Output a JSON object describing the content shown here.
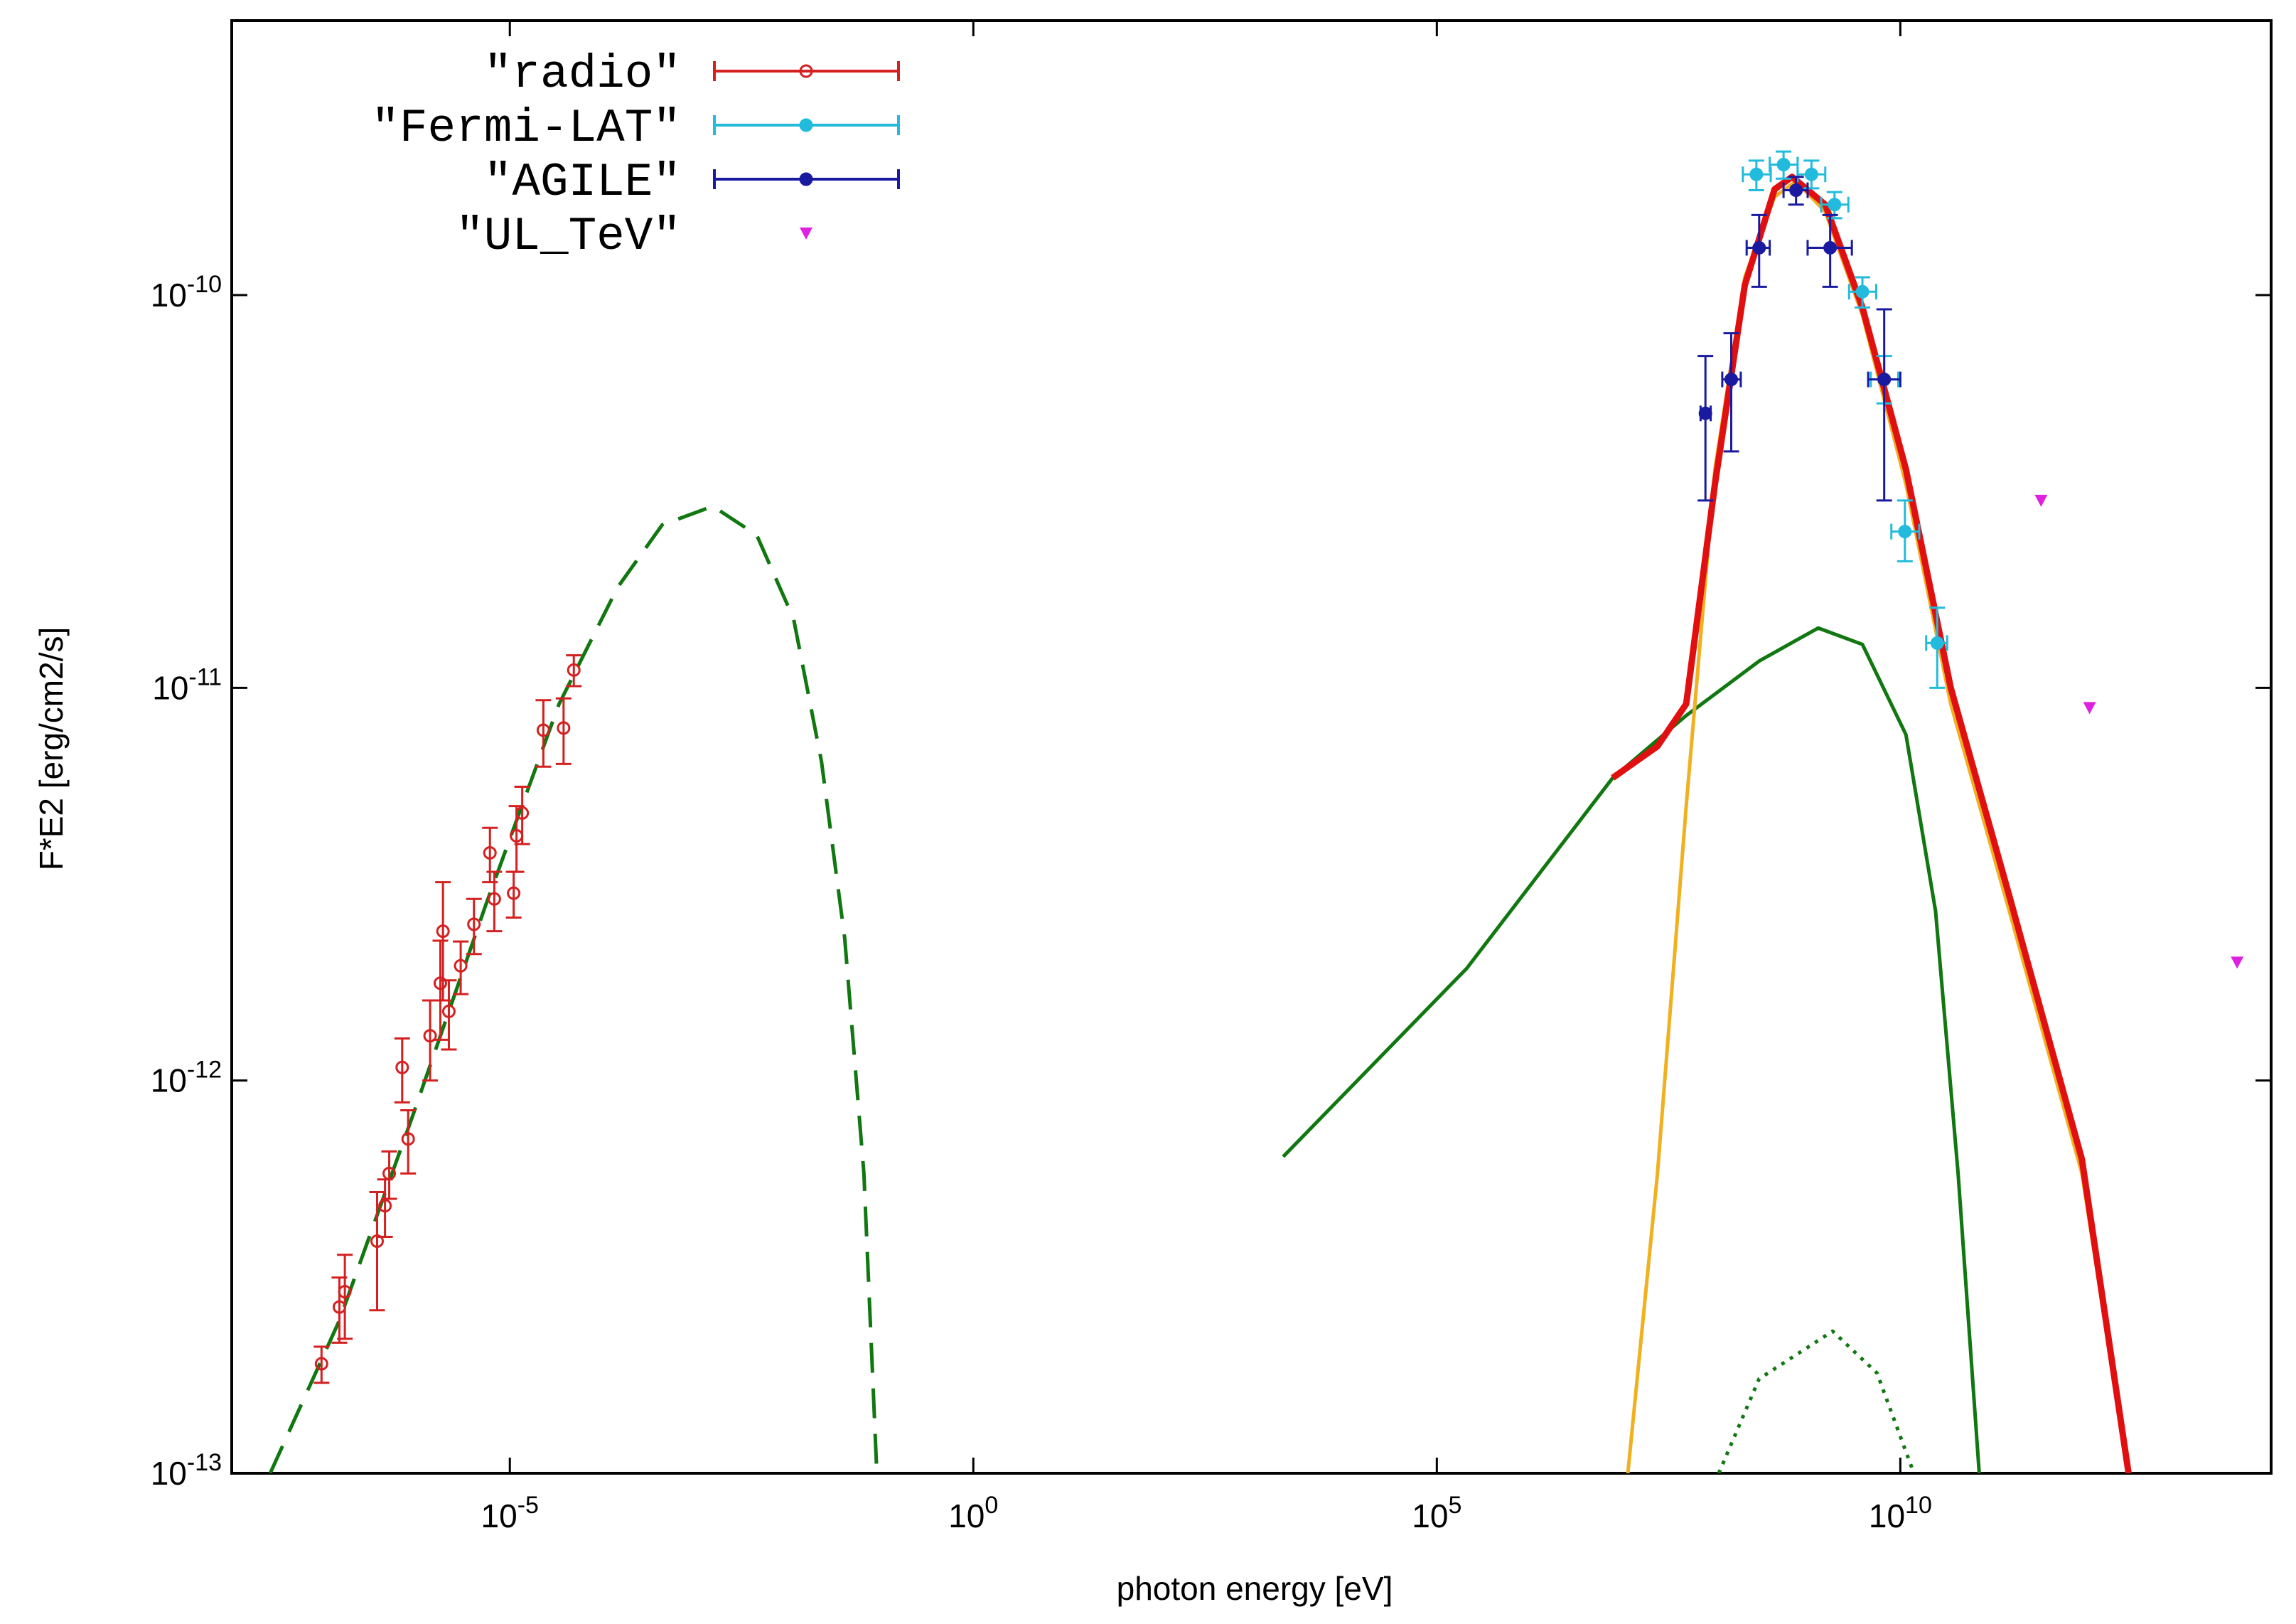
{
  "chart_data": {
    "type": "scatter",
    "x_label": "photon energy [eV]",
    "y_label": "F*E2 [erg/cm2/s]",
    "xscale": "log",
    "yscale": "log",
    "xlim": [
      1e-08,
      100000000000000.0
    ],
    "ylim": [
      1e-13,
      5e-10
    ],
    "xticks": [
      {
        "value": 1e-05,
        "label": "10-5"
      },
      {
        "value": 1,
        "label": "100"
      },
      {
        "value": 100000,
        "label": "105"
      },
      {
        "value": 10000000000,
        "label": "1010"
      }
    ],
    "yticks": [
      {
        "value": 1e-13,
        "label": "10-13"
      },
      {
        "value": 1e-12,
        "label": "10-12"
      },
      {
        "value": 1e-11,
        "label": "10-11"
      },
      {
        "value": 1e-10,
        "label": "10-10"
      }
    ],
    "legend": "upper left",
    "series": [
      {
        "name": "\"radio\"",
        "color": "#d42020",
        "mode": "points",
        "marker": "open-circle",
        "x": [
          9.3e-08,
          1.45e-07,
          1.66e-07,
          3.7e-07,
          4.5e-07,
          5e-07,
          6.9e-07,
          8e-07,
          1.38e-06,
          1.78e-06,
          1.9e-06,
          2.2e-06,
          2.95e-06,
          4.1e-06,
          6.1e-06,
          6.8e-06,
          1.1e-05,
          1.18e-05,
          1.36e-05,
          2.3e-05,
          3.8e-05,
          4.9e-05
        ],
        "values": [
          1.9e-13,
          2.65e-13,
          2.9e-13,
          3.9e-13,
          4.8e-13,
          5.8e-13,
          1.08e-12,
          7.1e-13,
          1.3e-12,
          1.77e-12,
          2.4e-12,
          1.5e-12,
          1.96e-12,
          2.5e-12,
          3.8e-12,
          2.9e-12,
          3e-12,
          4.2e-12,
          4.8e-12,
          7.8e-12,
          7.9e-12,
          1.11e-11
        ],
        "ylow": [
          1.7e-13,
          2.15e-13,
          2.2e-13,
          2.6e-13,
          4e-13,
          5e-13,
          8.8e-13,
          5.8e-13,
          1e-12,
          1.27e-12,
          1.6e-12,
          1.2e-12,
          1.66e-12,
          2.1e-12,
          3.2e-12,
          2.4e-12,
          2.6e-12,
          3.4e-12,
          4e-12,
          6.3e-12,
          6.4e-12,
          1.01e-11
        ],
        "yhigh": [
          2.1e-13,
          3.15e-13,
          3.6e-13,
          5.2e-13,
          5.6e-13,
          6.6e-13,
          1.28e-12,
          8.4e-13,
          1.6e-12,
          2.27e-12,
          3.2e-12,
          1.8e-12,
          2.26e-12,
          2.9e-12,
          4.4e-12,
          3.4e-12,
          3.4e-12,
          5e-12,
          5.6e-12,
          9.3e-12,
          9.4e-12,
          1.21e-11
        ]
      },
      {
        "name": "\"Fermi-LAT\"",
        "color": "#22bbdd",
        "mode": "points",
        "marker": "circle",
        "x": [
          280000000.0,
          550000000.0,
          1100000000.0,
          1950000000.0,
          3900000000.0,
          6700000000.0,
          11200000000.0,
          25000000000.0
        ],
        "values": [
          2.03e-10,
          2.15e-10,
          2.03e-10,
          1.7e-10,
          1.02e-10,
          6.1e-11,
          2.5e-11,
          1.3e-11
        ],
        "ylow": [
          1.85e-10,
          1.98e-10,
          1.87e-10,
          1.57e-10,
          9.3e-11,
          5.3e-11,
          2.1e-11,
          1e-11
        ],
        "yhigh": [
          2.2e-10,
          2.32e-10,
          2.2e-10,
          1.83e-10,
          1.11e-10,
          7e-11,
          3e-11,
          1.6e-11
        ],
        "xlow": [
          200000000.0,
          390000000.0,
          780000000.0,
          1400000000.0,
          2800000000.0,
          4800000000.0,
          8000000000.0,
          19000000000.0
        ],
        "xhigh": [
          400000000.0,
          780000000.0,
          1550000000.0,
          2750000000.0,
          5500000000.0,
          9500000000.0,
          16000000000.0,
          32000000000.0
        ]
      },
      {
        "name": "\"AGILE\"",
        "color": "#1a1aa0",
        "mode": "points",
        "marker": "circle",
        "x": [
          79000000.0,
          150000000.0,
          300000000.0,
          750000000.0,
          1750000000.0,
          6700000000.0
        ],
        "values": [
          5e-11,
          6.1e-11,
          1.32e-10,
          1.85e-10,
          1.32e-10,
          6.1e-11
        ],
        "ylow": [
          3e-11,
          4e-11,
          1.05e-10,
          1.7e-10,
          1.05e-10,
          3e-11
        ],
        "yhigh": [
          7e-11,
          8e-11,
          1.6e-10,
          2e-10,
          1.6e-10,
          9.2e-11
        ],
        "xlow": [
          70000000.0,
          120000000.0,
          220000000.0,
          550000000.0,
          1000000000.0,
          4500000000.0
        ],
        "xhigh": [
          90000000.0,
          190000000.0,
          390000000.0,
          1000000000.0,
          3000000000.0,
          10000000000.0
        ]
      },
      {
        "name": "\"UL_TeV\"",
        "color": "#e020e0",
        "mode": "points",
        "marker": "triangle-down",
        "x": [
          330000000000.0,
          1100000000000.0,
          43000000000000.0
        ],
        "values": [
          3e-11,
          8.9e-12,
          2e-12
        ]
      },
      {
        "color": "#117711",
        "mode": "line",
        "style": "dashed",
        "x": [
          2.6e-08,
          1.45e-07,
          8.9e-07,
          5.5e-06,
          3.4e-05,
          0.000145,
          0.00044,
          0.00155,
          0.0046,
          0.0115,
          0.023,
          0.041,
          0.066,
          0.091
        ],
        "values": [
          1e-13,
          2.45e-13,
          8.1e-13,
          2.8e-12,
          9.1e-12,
          1.8e-11,
          2.6e-11,
          2.9e-11,
          2.45e-11,
          1.5e-11,
          6.5e-12,
          2.3e-12,
          5.8e-13,
          1e-13
        ]
      },
      {
        "color": "#117711",
        "mode": "line",
        "style": "solid",
        "x": [
          2200.0,
          210000.0,
          7900000.0,
          49000000.0,
          300000000.0,
          1300000000.0,
          3900000000.0,
          11500000000.0,
          24000000000.0,
          42000000000.0,
          71000000000.0
        ],
        "values": [
          6.4e-13,
          1.93e-12,
          5.9e-12,
          8.5e-12,
          1.17e-11,
          1.42e-11,
          1.29e-11,
          7.6e-12,
          2.7e-12,
          5.8e-13,
          1e-13
        ]
      },
      {
        "color": "#f0b020",
        "mode": "line",
        "style": "solid",
        "x": [
          11500000.0,
          24000000.0,
          49000000.0,
          100000000.0,
          210000000.0,
          440000000.0,
          750000000.0,
          1550000000.0,
          3900000000.0,
          11500000000.0,
          35000000000.0,
          150000000000.0,
          910000000000.0,
          2900000000000.0
        ],
        "values": [
          1e-13,
          5.8e-13,
          5e-12,
          3.6e-11,
          1.11e-10,
          1.78e-10,
          1.95e-10,
          1.63e-10,
          8.9e-11,
          3.3e-11,
          9.1e-12,
          2.7e-12,
          5.8e-13,
          1e-13
        ]
      },
      {
        "color": "#e01010",
        "mode": "line",
        "style": "thick",
        "x": [
          7900000.0,
          24000000.0,
          49000000.0,
          100000000.0,
          210000000.0,
          440000000.0,
          680000000.0,
          1550000000.0,
          3900000000.0,
          11500000000.0,
          35000000000.0,
          150000000000.0,
          910000000000.0,
          2900000000000.0
        ],
        "values": [
          5.9e-12,
          7.1e-12,
          9.1e-12,
          3.3e-11,
          1.06e-10,
          1.86e-10,
          2e-10,
          1.7e-10,
          9.3e-11,
          3.6e-11,
          1e-11,
          2.95e-12,
          6.3e-13,
          1e-13
        ]
      },
      {
        "color": "#117711",
        "mode": "line",
        "style": "dotted",
        "x": [
          110000000.0,
          300000000.0,
          1860000000.0,
          5600000000.0,
          14000000000.0
        ],
        "values": [
          1e-13,
          1.74e-13,
          2.3e-13,
          1.8e-13,
          1e-13
        ]
      }
    ]
  }
}
